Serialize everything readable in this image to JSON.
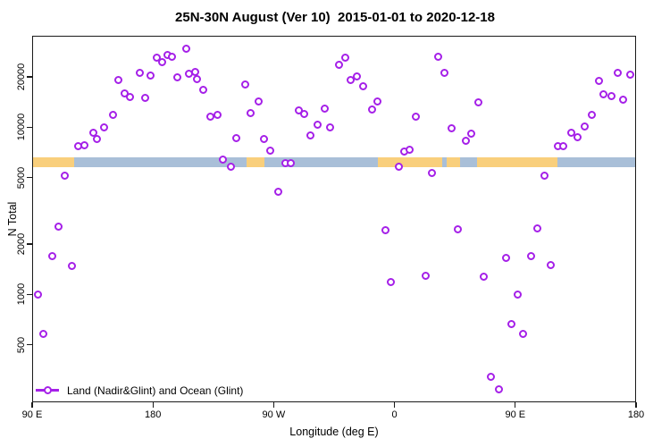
{
  "colors": {
    "point": "#a520e8",
    "land": "#f9cf7c",
    "ocean": "#a9bfd8",
    "axis": "#1a1a1a"
  },
  "legend": {
    "label": "Land (Nadir&Glint) and Ocean (Glint)"
  },
  "map_band": {
    "n_range": [
      5770,
      6600
    ],
    "segments": [
      {
        "type": "land",
        "from": 90,
        "to": 121
      },
      {
        "type": "ocean",
        "from": 121,
        "to": 249.8
      },
      {
        "type": "land",
        "from": 249.8,
        "to": 263
      },
      {
        "type": "ocean",
        "from": 263,
        "to": 347.5
      },
      {
        "type": "land",
        "from": 347.5,
        "to": 395.5
      },
      {
        "type": "ocean",
        "from": 395.5,
        "to": 399
      },
      {
        "type": "land",
        "from": 399,
        "to": 409
      },
      {
        "type": "ocean",
        "from": 409,
        "to": 421.5
      },
      {
        "type": "land",
        "from": 421.5,
        "to": 481.5
      },
      {
        "type": "ocean",
        "from": 481.5,
        "to": 540
      }
    ]
  },
  "chart_data": {
    "type": "scatter",
    "title": "25N-30N August (Ver 10)  2015-01-01 to 2020-12-18",
    "xlabel": "Longitude (deg E)",
    "ylabel": "N Total",
    "xlim": [
      90,
      540
    ],
    "ylim": [
      226,
      35260
    ],
    "yscale": "log",
    "grid": false,
    "legend_position": "bottom-left",
    "x_ticks": [
      {
        "v": 90,
        "label": "90 E"
      },
      {
        "v": 180,
        "label": "180"
      },
      {
        "v": 270,
        "label": "90 W"
      },
      {
        "v": 360,
        "label": "0"
      },
      {
        "v": 450,
        "label": "90 E"
      },
      {
        "v": 540,
        "label": "180"
      }
    ],
    "y_ticks": [
      {
        "v": 500,
        "label": "500"
      },
      {
        "v": 1000,
        "label": "1000"
      },
      {
        "v": 2000,
        "label": "2000"
      },
      {
        "v": 5000,
        "label": "5000"
      },
      {
        "v": 10000,
        "label": "10000"
      },
      {
        "v": 20000,
        "label": "20000"
      }
    ],
    "series_name": "Land (Nadir&Glint) and Ocean (Glint)",
    "points": [
      [
        94.5,
        1000
      ],
      [
        98.5,
        580
      ],
      [
        105,
        1700
      ],
      [
        109.5,
        2550
      ],
      [
        114.5,
        5100
      ],
      [
        119.5,
        1480
      ],
      [
        124.5,
        7700
      ],
      [
        129,
        7800
      ],
      [
        135.5,
        9300
      ],
      [
        138.5,
        8550
      ],
      [
        143.5,
        9950
      ],
      [
        150,
        11800
      ],
      [
        154.5,
        19100
      ],
      [
        159,
        15900
      ],
      [
        163,
        15100
      ],
      [
        170,
        21200
      ],
      [
        174,
        15000
      ],
      [
        178.5,
        20300
      ],
      [
        183,
        26000
      ],
      [
        187,
        24400
      ],
      [
        191,
        27000
      ],
      [
        194.5,
        26300
      ],
      [
        198.5,
        19900
      ],
      [
        204.5,
        29400
      ],
      [
        207,
        20900
      ],
      [
        211.5,
        21500
      ],
      [
        213,
        19300
      ],
      [
        217.5,
        16800
      ],
      [
        223,
        11600
      ],
      [
        228,
        11800
      ],
      [
        232,
        6420
      ],
      [
        238,
        5810
      ],
      [
        242,
        8560
      ],
      [
        248.5,
        18000
      ],
      [
        253,
        12100
      ],
      [
        258.5,
        14200
      ],
      [
        262.5,
        8530
      ],
      [
        267.5,
        7280
      ],
      [
        273.5,
        4130
      ],
      [
        279,
        6060
      ],
      [
        283,
        6060
      ],
      [
        288.5,
        12600
      ],
      [
        293,
        12000
      ],
      [
        297.5,
        8930
      ],
      [
        302.5,
        10400
      ],
      [
        308,
        12900
      ],
      [
        312,
        10000
      ],
      [
        318.5,
        23700
      ],
      [
        323,
        26100
      ],
      [
        327.5,
        19100
      ],
      [
        332,
        20100
      ],
      [
        336.5,
        17500
      ],
      [
        343,
        12800
      ],
      [
        347.5,
        14300
      ],
      [
        353,
        2420
      ],
      [
        357.5,
        1190
      ],
      [
        363.5,
        5810
      ],
      [
        367.5,
        7120
      ],
      [
        371,
        7330
      ],
      [
        376,
        11600
      ],
      [
        383,
        1290
      ],
      [
        388,
        5350
      ],
      [
        392.5,
        26300
      ],
      [
        397.5,
        21200
      ],
      [
        402.5,
        9890
      ],
      [
        407,
        2440
      ],
      [
        413,
        8290
      ],
      [
        417,
        9180
      ],
      [
        422.5,
        14100
      ],
      [
        426.5,
        1270
      ],
      [
        432,
        320
      ],
      [
        438,
        270
      ],
      [
        443,
        1660
      ],
      [
        447,
        660
      ],
      [
        451.5,
        1000
      ],
      [
        456,
        580
      ],
      [
        462,
        1700
      ],
      [
        466.5,
        2490
      ],
      [
        472,
        5120
      ],
      [
        476.5,
        1490
      ],
      [
        481.5,
        7700
      ],
      [
        486,
        7750
      ],
      [
        491.5,
        9300
      ],
      [
        496.5,
        8700
      ],
      [
        501.5,
        10100
      ],
      [
        507,
        11800
      ],
      [
        512.5,
        19000
      ],
      [
        515.5,
        15700
      ],
      [
        521.5,
        15300
      ],
      [
        526.5,
        21200
      ],
      [
        530.5,
        14600
      ],
      [
        535.5,
        20700
      ]
    ]
  }
}
